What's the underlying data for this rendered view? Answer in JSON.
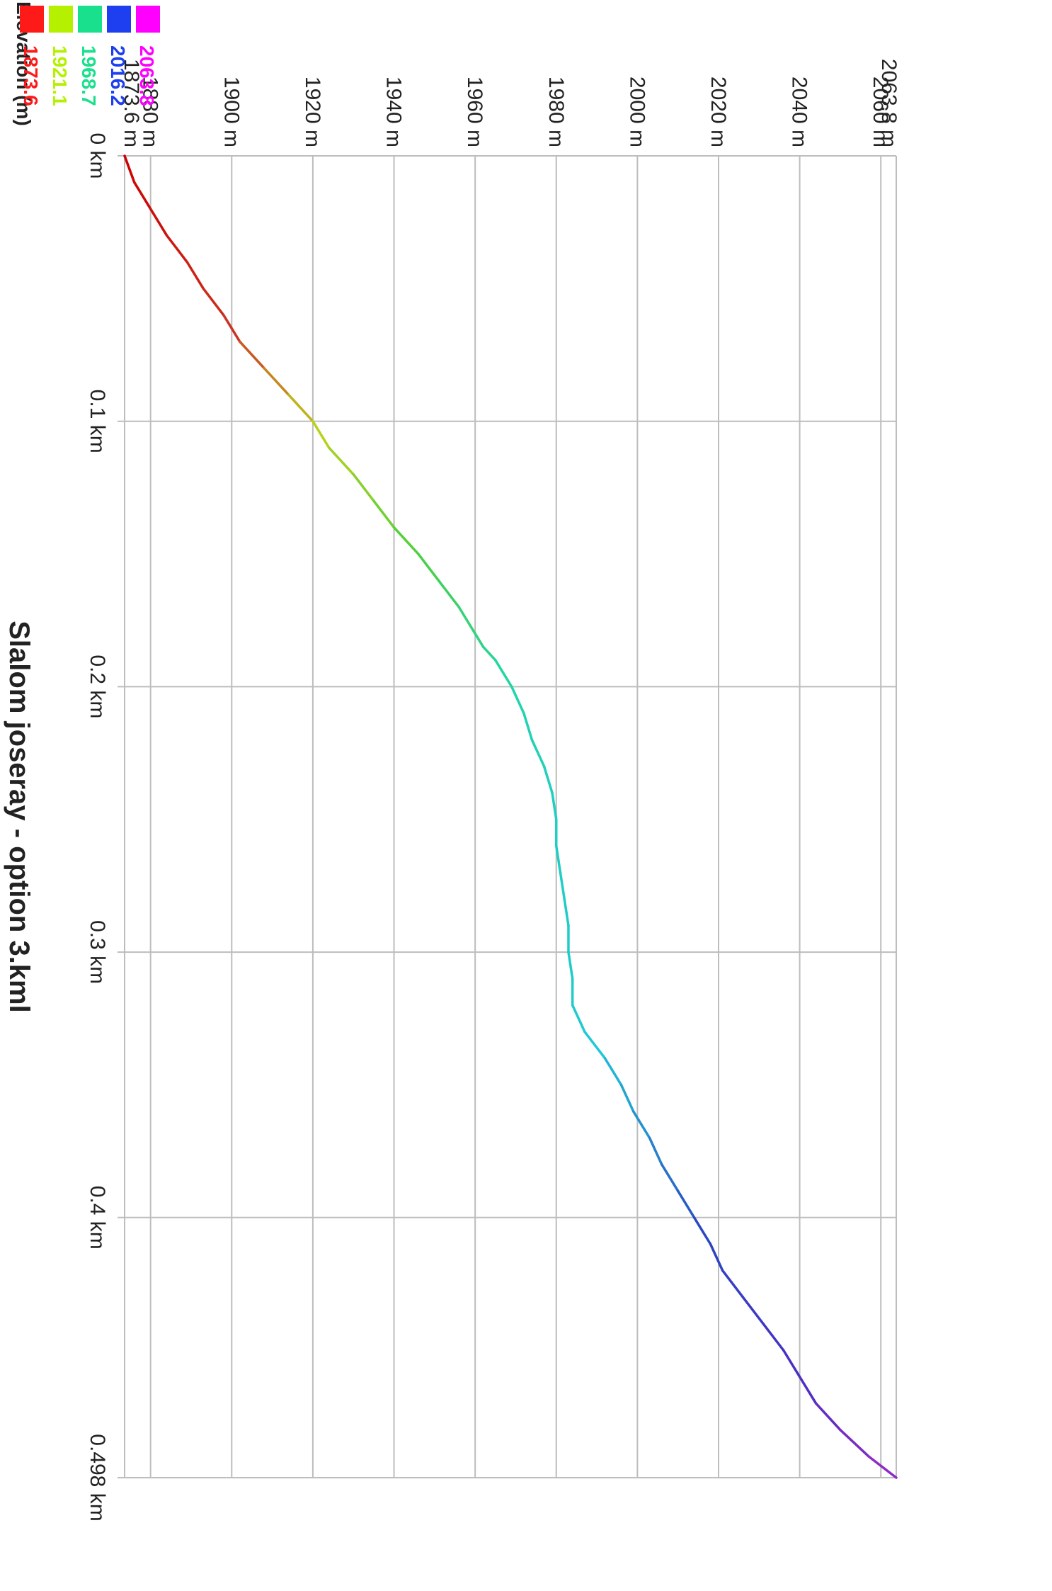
{
  "chart_data": {
    "type": "line",
    "title": "Slalom joseray - option 3.kml",
    "xlabel": "",
    "ylabel": "",
    "rotation": "chart rotated 90 degrees clockwise",
    "x_unit": "km",
    "y_unit": "m",
    "xlim": [
      0,
      0.498
    ],
    "ylim": [
      1873.6,
      2063.8
    ],
    "x_ticks": [
      {
        "value": 0,
        "label": "0 km"
      },
      {
        "value": 0.1,
        "label": "0.1 km"
      },
      {
        "value": 0.2,
        "label": "0.2 km"
      },
      {
        "value": 0.3,
        "label": "0.3 km"
      },
      {
        "value": 0.4,
        "label": "0.4 km"
      },
      {
        "value": 0.498,
        "label": "0.498 km"
      }
    ],
    "y_ticks": [
      {
        "value": 1873.6,
        "label": "1873.6 m"
      },
      {
        "value": 1880,
        "label": "1880 m"
      },
      {
        "value": 1900,
        "label": "1900 m"
      },
      {
        "value": 1920,
        "label": "1920 m"
      },
      {
        "value": 1940,
        "label": "1940 m"
      },
      {
        "value": 1960,
        "label": "1960 m"
      },
      {
        "value": 1980,
        "label": "1980 m"
      },
      {
        "value": 2000,
        "label": "2000 m"
      },
      {
        "value": 2020,
        "label": "2020 m"
      },
      {
        "value": 2040,
        "label": "2040 m"
      },
      {
        "value": 2060,
        "label": "2060 m"
      },
      {
        "value": 2063.8,
        "label": "2063.8 m"
      }
    ],
    "grid": true,
    "legend": {
      "title": "Elevation (m)",
      "placement": "top-right",
      "entries": [
        {
          "label": "2063.8",
          "color": "#ff00ff"
        },
        {
          "label": "2016.2",
          "color": "#1d3ff0"
        },
        {
          "label": "1968.7",
          "color": "#19e08c"
        },
        {
          "label": "1921.1",
          "color": "#b4f000"
        },
        {
          "label": "1873.6",
          "color": "#ff1a1a"
        }
      ]
    },
    "colorscale": [
      {
        "value": 1873.6,
        "color": "#cc0000"
      },
      {
        "value": 1900,
        "color": "#cc3322"
      },
      {
        "value": 1921.1,
        "color": "#bcd21a"
      },
      {
        "value": 1945,
        "color": "#4cd03a"
      },
      {
        "value": 1968.7,
        "color": "#1fd6a8"
      },
      {
        "value": 1990,
        "color": "#1fc8d8"
      },
      {
        "value": 2016.2,
        "color": "#2a46c4"
      },
      {
        "value": 2040,
        "color": "#4a2ec4"
      },
      {
        "value": 2063.8,
        "color": "#9a2ac8"
      }
    ],
    "series": [
      {
        "x": [
          0,
          0.01,
          0.02,
          0.03,
          0.04,
          0.05,
          0.06,
          0.07,
          0.08,
          0.09,
          0.1,
          0.11,
          0.12,
          0.13,
          0.14,
          0.15,
          0.16,
          0.17,
          0.18,
          0.185,
          0.19,
          0.2,
          0.21,
          0.22,
          0.23,
          0.24,
          0.25,
          0.26,
          0.27,
          0.28,
          0.29,
          0.3,
          0.31,
          0.32,
          0.33,
          0.34,
          0.35,
          0.36,
          0.37,
          0.38,
          0.39,
          0.4,
          0.41,
          0.42,
          0.43,
          0.44,
          0.45,
          0.46,
          0.47,
          0.48,
          0.49,
          0.498
        ],
        "y": [
          1873.6,
          1876,
          1880,
          1884,
          1889,
          1893,
          1898,
          1902,
          1908,
          1914,
          1920,
          1924,
          1930,
          1935,
          1940,
          1946,
          1951,
          1956,
          1960,
          1962,
          1965,
          1969,
          1972,
          1974,
          1977,
          1979,
          1980,
          1980,
          1981,
          1982,
          1983,
          1983,
          1984,
          1984,
          1987,
          1992,
          1996,
          1999,
          2003,
          2006,
          2010,
          2014,
          2018,
          2021,
          2026,
          2031,
          2036,
          2040,
          2044,
          2050,
          2057,
          2063.8
        ]
      }
    ]
  }
}
